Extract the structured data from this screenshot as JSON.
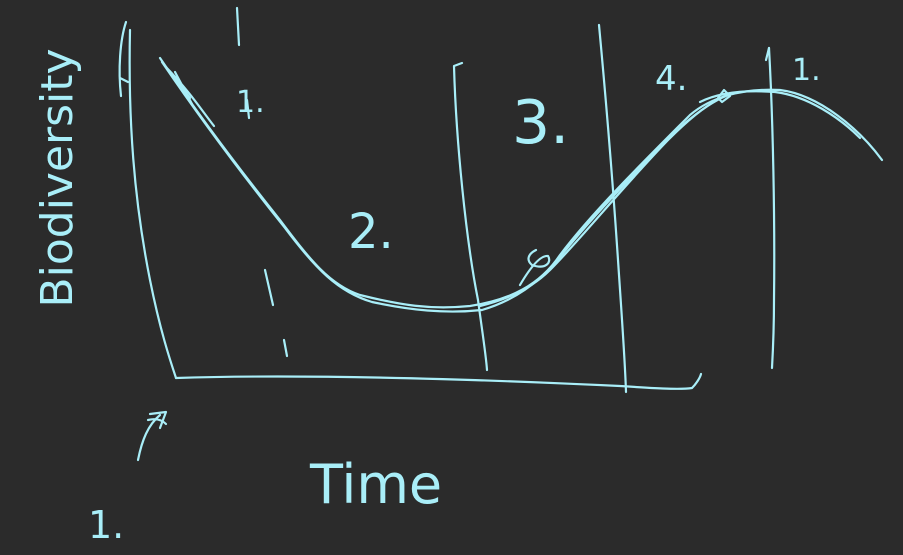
{
  "ink_color": "#a9eef8",
  "background_color": "#2b2b2b",
  "axis_labels": {
    "x": "Time",
    "y": "Biodiversity"
  },
  "regions": [
    {
      "label": "1."
    },
    {
      "label": "2."
    },
    {
      "label": "3."
    },
    {
      "label": "4."
    },
    {
      "label": "1."
    }
  ],
  "corner_note": "1."
}
